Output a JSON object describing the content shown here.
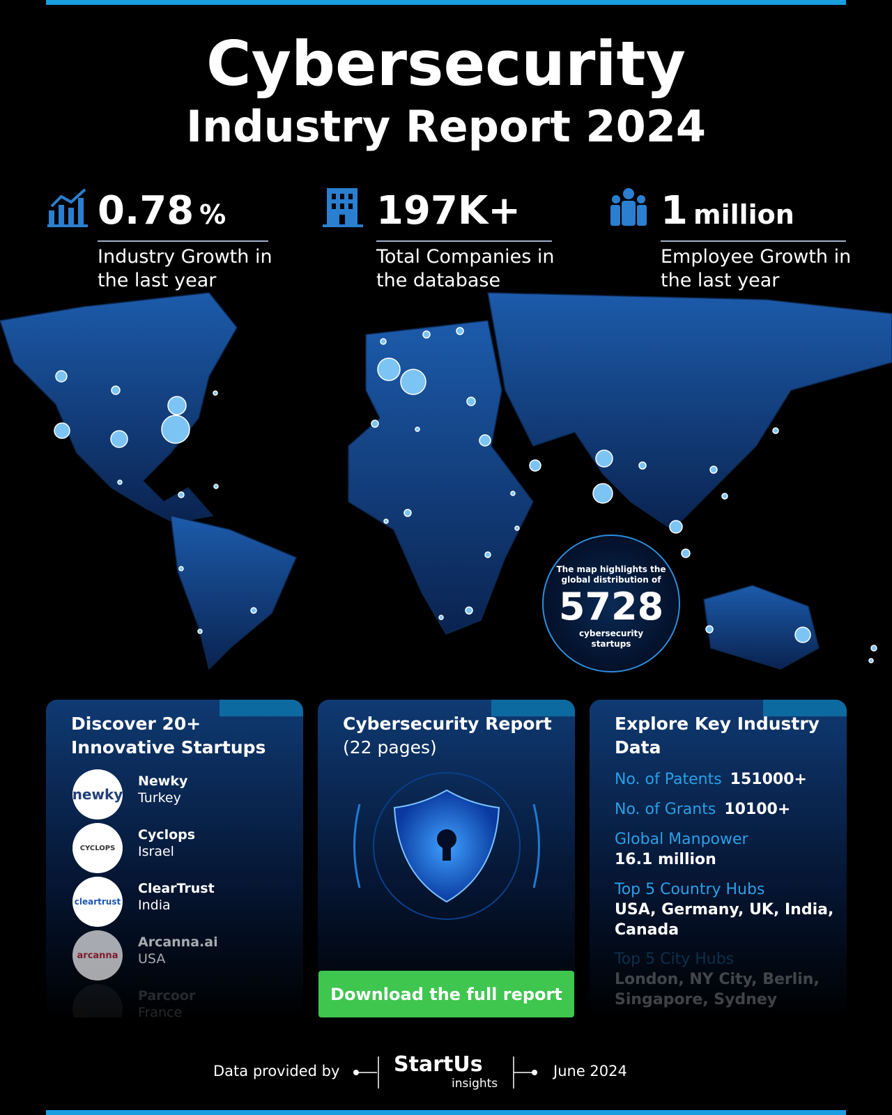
{
  "header": {
    "title": "Cybersecurity",
    "subtitle": "Industry Report 2024"
  },
  "stats": [
    {
      "value": "0.78",
      "unit": "%",
      "label": "Industry Growth in the last year"
    },
    {
      "value": "197K+",
      "label": "Total Companies in the database"
    },
    {
      "value": "1",
      "unit": "million",
      "label": "Employee Growth in the last year"
    }
  ],
  "map_callout": {
    "intro": "The map highlights the global distribution of",
    "count": "5728",
    "caption": "cybersecurity startups"
  },
  "startups_card": {
    "title": "Discover 20+ Innovative Startups",
    "items": [
      {
        "logo": "newky",
        "name": "Newky",
        "country": "Turkey"
      },
      {
        "logo": "CYCLOPS",
        "name": "Cyclops",
        "country": "Israel"
      },
      {
        "logo": "cleartrust",
        "name": "ClearTrust",
        "country": "India"
      },
      {
        "logo": "arcanna",
        "name": "Arcanna.ai",
        "country": "USA"
      },
      {
        "name": "Parcoor",
        "country": "France"
      }
    ]
  },
  "report_card": {
    "title": "Cybersecurity Report",
    "pages": "(22 pages)",
    "button": "Download the full report"
  },
  "data_card": {
    "title": "Explore Key Industry Data",
    "items": [
      {
        "label": "No. of Patents",
        "value": "151000+"
      },
      {
        "label": "No. of Grants",
        "value": "10100+"
      },
      {
        "label": "Global Manpower",
        "value": "16.1 million"
      },
      {
        "label": "Top 5 Country Hubs",
        "value": "USA, Germany, UK, India, Canada"
      },
      {
        "label": "Top 5 City Hubs",
        "value": "London, NY City, Berlin, Singapore, Sydney"
      }
    ]
  },
  "footer": {
    "provided": "Data provided by",
    "brand": "StartUs",
    "brand_sub": "insights",
    "date": "June 2024"
  }
}
